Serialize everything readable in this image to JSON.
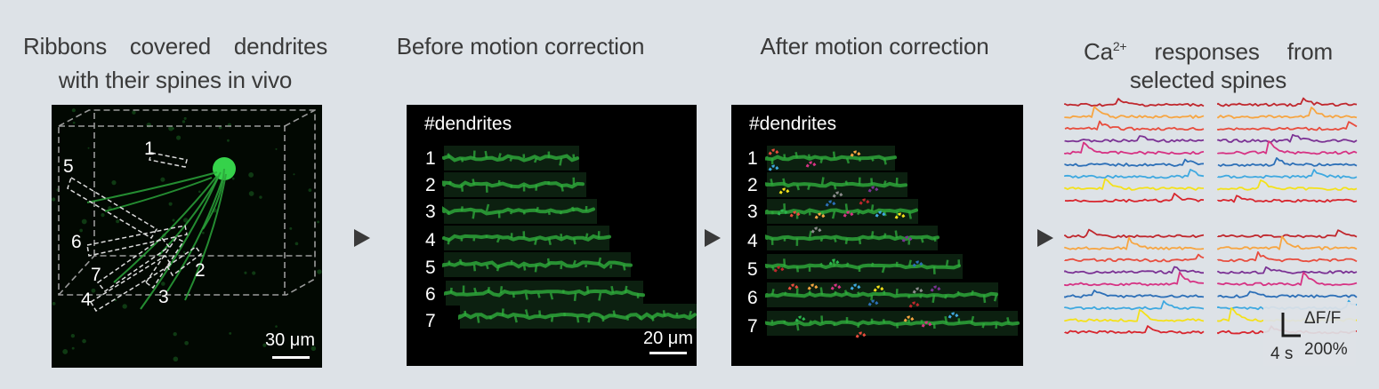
{
  "panel1": {
    "title_line1": "Ribbons covered dendrites",
    "title_line2": "with their spines in vivo",
    "dendrite_labels": [
      "1",
      "2",
      "3",
      "4",
      "5",
      "6",
      "7"
    ],
    "scale_label": "30 μm"
  },
  "panel2": {
    "title": "Before motion correction",
    "header": "#dendrites",
    "row_labels": [
      "1",
      "2",
      "3",
      "4",
      "5",
      "6",
      "7"
    ],
    "scale_label": "20 μm"
  },
  "panel3": {
    "title": "After motion correction",
    "header": "#dendrites",
    "row_labels": [
      "1",
      "2",
      "3",
      "4",
      "5",
      "6",
      "7"
    ]
  },
  "panel4": {
    "title_ca": "Ca",
    "title_sup": "2+",
    "title_rest": "responses from",
    "title_line2": "selected spines",
    "scale_y": "ΔF/F",
    "scale_y_value": "200%",
    "scale_x": "4 s"
  },
  "colors": {
    "background": "#dde2e7",
    "dendrite_green": "#2fae3c",
    "trace_colors": [
      "#c0272d",
      "#f7a541",
      "#e84c3d",
      "#7b3294",
      "#d63384",
      "#2c6fb7",
      "#3fa9e0",
      "#f4e11a",
      "#d8262e"
    ]
  },
  "arrow_icon": "triangle-right-icon"
}
